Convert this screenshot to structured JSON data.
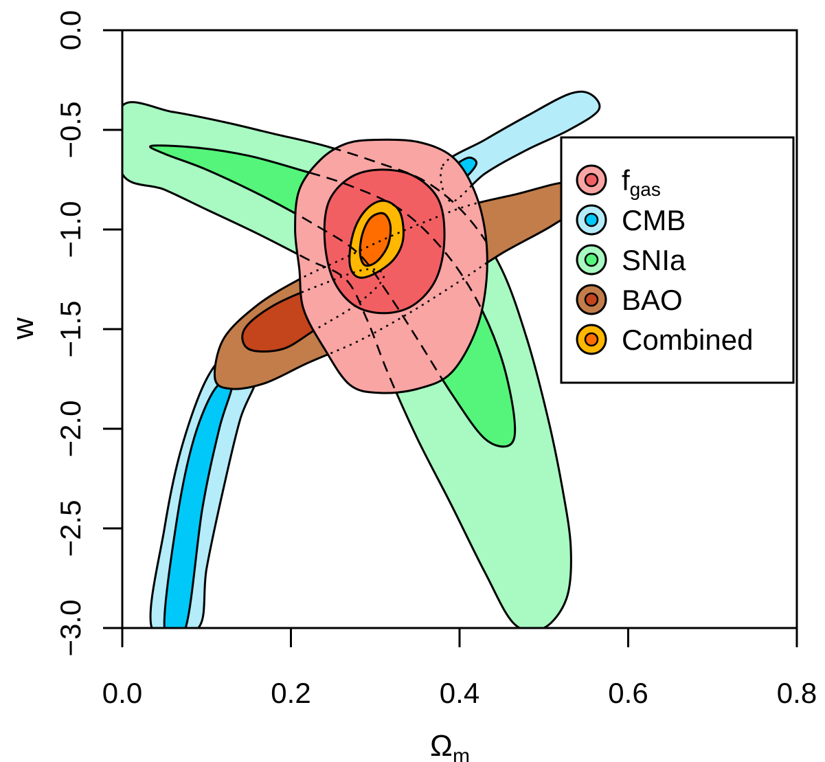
{
  "chart_data": {
    "type": "contour",
    "xlabel": "Ω",
    "xlabel_sub": "m",
    "ylabel": "w",
    "xlim": [
      0.0,
      0.8
    ],
    "ylim": [
      -3.0,
      0.0
    ],
    "x_ticks": [
      "0.0",
      "0.2",
      "0.4",
      "0.6",
      "0.8"
    ],
    "y_ticks": [
      "0.0",
      "−0.5",
      "−1.0",
      "−1.5",
      "−2.0",
      "−2.5",
      "−3.0"
    ],
    "legend_position": "right",
    "legend": [
      {
        "label": "f",
        "label_sub": "gas",
        "inner_color": "#f25f62",
        "outer_color": "#f8a5a3"
      },
      {
        "label": "CMB",
        "inner_color": "#00c8f8",
        "outer_color": "#b4ecfa"
      },
      {
        "label": "SNIa",
        "inner_color": "#54f57a",
        "outer_color": "#a8f9c2"
      },
      {
        "label": "BAO",
        "inner_color": "#c4441c",
        "outer_color": "#c27d4a"
      },
      {
        "label": "Combined",
        "inner_color": "#ff6d00",
        "outer_color": "#ffb700"
      }
    ],
    "series": [
      {
        "name": "SNIa",
        "outer_color": "#a8f9c2",
        "inner_color": "#54f57a",
        "outer": [
          [
            0.0,
            -0.38
          ],
          [
            0.06,
            -0.41
          ],
          [
            0.12,
            -0.46
          ],
          [
            0.18,
            -0.52
          ],
          [
            0.24,
            -0.58
          ],
          [
            0.3,
            -0.66
          ],
          [
            0.36,
            -0.76
          ],
          [
            0.41,
            -0.94
          ],
          [
            0.45,
            -1.2
          ],
          [
            0.48,
            -1.55
          ],
          [
            0.505,
            -1.95
          ],
          [
            0.522,
            -2.3
          ],
          [
            0.532,
            -2.6
          ],
          [
            0.527,
            -2.85
          ],
          [
            0.5,
            -3.0
          ],
          [
            0.465,
            -2.98
          ],
          [
            0.43,
            -2.72
          ],
          [
            0.39,
            -2.38
          ],
          [
            0.35,
            -2.05
          ],
          [
            0.315,
            -1.72
          ],
          [
            0.29,
            -1.45
          ],
          [
            0.265,
            -1.25
          ],
          [
            0.22,
            -1.15
          ],
          [
            0.16,
            -1.02
          ],
          [
            0.1,
            -0.9
          ],
          [
            0.05,
            -0.8
          ],
          [
            0.0,
            -0.72
          ]
        ],
        "inner": [
          [
            0.035,
            -0.58
          ],
          [
            0.09,
            -0.59
          ],
          [
            0.15,
            -0.63
          ],
          [
            0.21,
            -0.7
          ],
          [
            0.27,
            -0.78
          ],
          [
            0.33,
            -0.9
          ],
          [
            0.38,
            -1.1
          ],
          [
            0.42,
            -1.35
          ],
          [
            0.45,
            -1.65
          ],
          [
            0.465,
            -1.95
          ],
          [
            0.46,
            -2.08
          ],
          [
            0.43,
            -2.05
          ],
          [
            0.39,
            -1.82
          ],
          [
            0.35,
            -1.55
          ],
          [
            0.315,
            -1.32
          ],
          [
            0.28,
            -1.12
          ],
          [
            0.23,
            -0.98
          ],
          [
            0.17,
            -0.84
          ],
          [
            0.1,
            -0.7
          ],
          [
            0.05,
            -0.62
          ]
        ]
      },
      {
        "name": "CMB",
        "outer_color": "#b4ecfa",
        "inner_color": "#00c8f8",
        "outer": [
          [
            0.035,
            -3.0
          ],
          [
            0.05,
            -2.5
          ],
          [
            0.07,
            -2.1
          ],
          [
            0.1,
            -1.75
          ],
          [
            0.13,
            -1.62
          ],
          [
            0.16,
            -1.72
          ],
          [
            0.14,
            -1.95
          ],
          [
            0.12,
            -2.3
          ],
          [
            0.1,
            -2.7
          ],
          [
            0.09,
            -3.0
          ]
        ],
        "inner": [
          [
            0.05,
            -3.0
          ],
          [
            0.065,
            -2.45
          ],
          [
            0.085,
            -2.05
          ],
          [
            0.11,
            -1.8
          ],
          [
            0.13,
            -1.78
          ],
          [
            0.115,
            -2.0
          ],
          [
            0.095,
            -2.4
          ],
          [
            0.075,
            -3.0
          ]
        ],
        "outer_upper": [
          [
            0.38,
            -0.68
          ],
          [
            0.43,
            -0.55
          ],
          [
            0.48,
            -0.43
          ],
          [
            0.53,
            -0.32
          ],
          [
            0.555,
            -0.32
          ],
          [
            0.565,
            -0.4
          ],
          [
            0.53,
            -0.5
          ],
          [
            0.48,
            -0.6
          ],
          [
            0.43,
            -0.72
          ],
          [
            0.39,
            -0.86
          ]
        ],
        "inner_upper": [
          [
            0.39,
            -0.7
          ],
          [
            0.41,
            -0.64
          ],
          [
            0.42,
            -0.67
          ],
          [
            0.405,
            -0.74
          ]
        ]
      },
      {
        "name": "BAO",
        "outer_color": "#c27d4a",
        "inner_color": "#c4441c",
        "outer": [
          [
            0.11,
            -1.75
          ],
          [
            0.12,
            -1.55
          ],
          [
            0.16,
            -1.38
          ],
          [
            0.21,
            -1.25
          ],
          [
            0.26,
            -1.15
          ],
          [
            0.31,
            -1.05
          ],
          [
            0.36,
            -0.96
          ],
          [
            0.41,
            -0.88
          ],
          [
            0.47,
            -0.82
          ],
          [
            0.515,
            -0.77
          ],
          [
            0.535,
            -0.77
          ],
          [
            0.54,
            -0.88
          ],
          [
            0.51,
            -0.98
          ],
          [
            0.45,
            -1.12
          ],
          [
            0.4,
            -1.26
          ],
          [
            0.34,
            -1.42
          ],
          [
            0.28,
            -1.56
          ],
          [
            0.22,
            -1.67
          ],
          [
            0.17,
            -1.77
          ],
          [
            0.13,
            -1.8
          ]
        ],
        "inner": [
          [
            0.145,
            -1.5
          ],
          [
            0.18,
            -1.38
          ],
          [
            0.24,
            -1.27
          ],
          [
            0.29,
            -1.2
          ],
          [
            0.31,
            -1.24
          ],
          [
            0.28,
            -1.37
          ],
          [
            0.23,
            -1.5
          ],
          [
            0.19,
            -1.6
          ],
          [
            0.15,
            -1.6
          ]
        ]
      },
      {
        "name": "fgas",
        "outer_color": "#f8a5a3",
        "inner_color": "#f25f62",
        "outer": [
          [
            0.3,
            -0.55
          ],
          [
            0.35,
            -0.56
          ],
          [
            0.39,
            -0.63
          ],
          [
            0.415,
            -0.78
          ],
          [
            0.43,
            -1.0
          ],
          [
            0.432,
            -1.25
          ],
          [
            0.42,
            -1.5
          ],
          [
            0.39,
            -1.72
          ],
          [
            0.35,
            -1.8
          ],
          [
            0.305,
            -1.82
          ],
          [
            0.27,
            -1.78
          ],
          [
            0.24,
            -1.6
          ],
          [
            0.215,
            -1.4
          ],
          [
            0.21,
            -1.2
          ],
          [
            0.205,
            -1.0
          ],
          [
            0.21,
            -0.8
          ],
          [
            0.235,
            -0.65
          ],
          [
            0.265,
            -0.57
          ]
        ],
        "inner": [
          [
            0.305,
            -0.7
          ],
          [
            0.345,
            -0.73
          ],
          [
            0.375,
            -0.85
          ],
          [
            0.382,
            -1.05
          ],
          [
            0.372,
            -1.25
          ],
          [
            0.345,
            -1.38
          ],
          [
            0.31,
            -1.42
          ],
          [
            0.275,
            -1.38
          ],
          [
            0.25,
            -1.25
          ],
          [
            0.24,
            -1.05
          ],
          [
            0.245,
            -0.86
          ],
          [
            0.27,
            -0.74
          ]
        ]
      },
      {
        "name": "Combined",
        "outer_color": "#ffb700",
        "inner_color": "#ff6d00",
        "outer": [
          [
            0.315,
            -0.86
          ],
          [
            0.33,
            -0.92
          ],
          [
            0.333,
            -1.05
          ],
          [
            0.322,
            -1.15
          ],
          [
            0.3,
            -1.22
          ],
          [
            0.28,
            -1.24
          ],
          [
            0.27,
            -1.18
          ],
          [
            0.272,
            -1.05
          ],
          [
            0.282,
            -0.94
          ],
          [
            0.298,
            -0.87
          ]
        ],
        "inner": [
          [
            0.31,
            -0.92
          ],
          [
            0.318,
            -0.98
          ],
          [
            0.315,
            -1.08
          ],
          [
            0.302,
            -1.16
          ],
          [
            0.288,
            -1.18
          ],
          [
            0.282,
            -1.12
          ],
          [
            0.285,
            -1.02
          ],
          [
            0.295,
            -0.94
          ]
        ]
      }
    ]
  }
}
